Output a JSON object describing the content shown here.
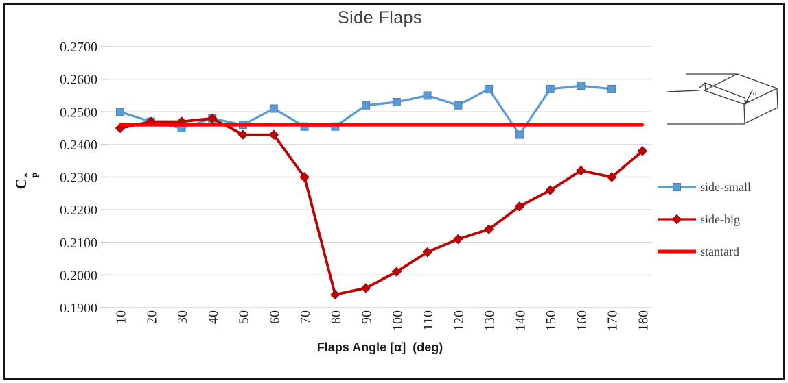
{
  "chart_data": {
    "type": "line",
    "title": "Side Flaps",
    "xlabel": "Flaps Angle [α]  (deg)",
    "ylabel": "Cp*",
    "ylabel_parts": {
      "base": "C",
      "sub": "p",
      "sup": "*"
    },
    "x": [
      10,
      20,
      30,
      40,
      50,
      60,
      70,
      80,
      90,
      100,
      110,
      120,
      130,
      140,
      150,
      160,
      170,
      180
    ],
    "series": [
      {
        "name": "side-small",
        "color": "#5B9BD5",
        "marker": "square",
        "marker_stroke": "#4A7EBB",
        "values": [
          0.25,
          0.247,
          0.245,
          0.248,
          0.246,
          0.251,
          0.2455,
          0.2455,
          0.252,
          0.253,
          0.255,
          0.252,
          0.257,
          0.243,
          0.257,
          0.258,
          0.257,
          null
        ]
      },
      {
        "name": "side-big",
        "color": "#C00000",
        "marker": "diamond",
        "marker_stroke": "#9E0000",
        "values": [
          0.245,
          0.247,
          0.247,
          0.248,
          0.243,
          0.243,
          0.23,
          0.194,
          0.196,
          0.201,
          0.207,
          0.211,
          0.214,
          0.221,
          0.226,
          0.232,
          0.23,
          0.238
        ]
      },
      {
        "name": "stantard",
        "color": "#FF0000",
        "marker": "none",
        "values": [
          0.246,
          0.246,
          0.246,
          0.246,
          0.246,
          0.246,
          0.246,
          0.246,
          0.246,
          0.246,
          0.246,
          0.246,
          0.246,
          0.246,
          0.246,
          0.246,
          0.246,
          0.246
        ]
      }
    ],
    "ylim": [
      0.19,
      0.27
    ],
    "yticks": [
      "0.2700",
      "0.2600",
      "0.2500",
      "0.2400",
      "0.2300",
      "0.2200",
      "0.2100",
      "0.2000",
      "0.1900"
    ],
    "grid": true,
    "legend_position": "right"
  },
  "inset": {
    "angle_label": "α"
  },
  "colors": {
    "gridline": "#D6D6D6",
    "tick": "#BFBFBF",
    "tick_text": "#1f1f1f",
    "title_text": "#3d3d3d",
    "frame_border": "#141414"
  }
}
